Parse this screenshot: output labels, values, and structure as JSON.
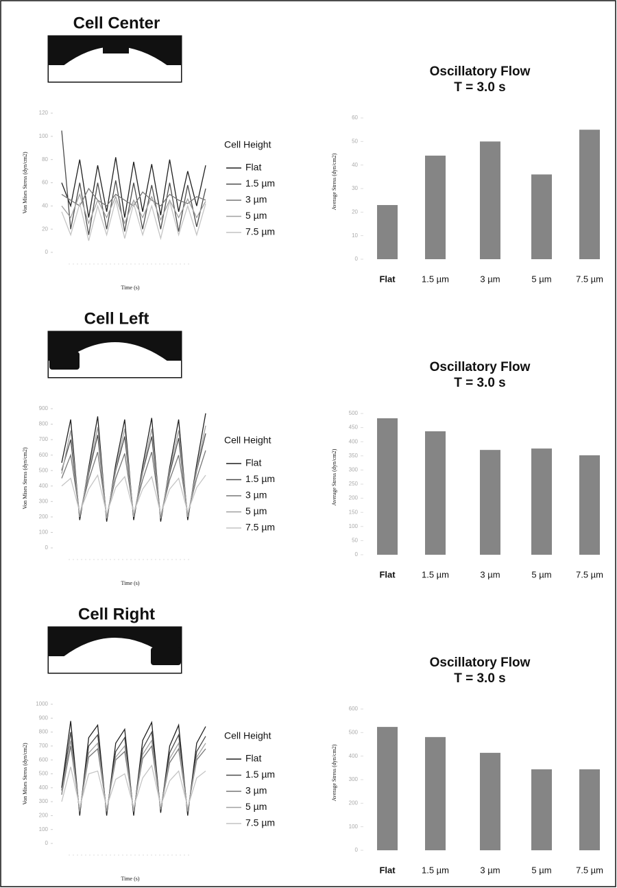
{
  "chart_data": [
    {
      "type": "line",
      "title": "Cell Center",
      "ylabel": "Von Mises Stress (dyn/cm2)",
      "xlabel": "Time (s)",
      "legend_title": "Cell Height",
      "x": [
        0,
        1,
        2,
        3,
        4,
        5,
        6,
        7,
        8,
        9,
        10,
        11,
        12,
        13,
        14,
        15,
        16
      ],
      "xlim": [
        0,
        16
      ],
      "ylim": [
        0,
        120
      ],
      "yticks": [
        0,
        20,
        40,
        60,
        80,
        100,
        120
      ],
      "series": [
        {
          "name": "Flat",
          "color": "#1e1e1e",
          "values": [
            60,
            40,
            80,
            30,
            75,
            35,
            82,
            30,
            78,
            35,
            76,
            32,
            80,
            35,
            70,
            40,
            75
          ]
        },
        {
          "name": "1.5 µm",
          "color": "#4a4a4a",
          "values": [
            105,
            20,
            60,
            15,
            60,
            20,
            62,
            18,
            60,
            20,
            58,
            20,
            60,
            18,
            58,
            22,
            55
          ]
        },
        {
          "name": "3 µm",
          "color": "#777777",
          "values": [
            50,
            45,
            40,
            55,
            45,
            40,
            50,
            45,
            40,
            52,
            45,
            40,
            50,
            45,
            42,
            48,
            45
          ]
        },
        {
          "name": "5 µm",
          "color": "#a0a0a0",
          "values": [
            40,
            30,
            50,
            25,
            45,
            30,
            48,
            25,
            45,
            30,
            48,
            28,
            45,
            30,
            46,
            30,
            44
          ]
        },
        {
          "name": "7.5 µm",
          "color": "#c4c4c4",
          "values": [
            35,
            15,
            42,
            10,
            40,
            15,
            45,
            12,
            42,
            15,
            40,
            12,
            44,
            15,
            40,
            15,
            42
          ]
        }
      ]
    },
    {
      "type": "bar",
      "title": "Oscillatory Flow",
      "subtitle": "T = 3.0 s",
      "ylabel": "Average Stress (dyn/cm2)",
      "color": "#858585",
      "categories": [
        "Flat",
        "1.5 µm",
        "3 µm",
        "5 µm",
        "7.5 µm"
      ],
      "values": [
        23,
        44,
        50,
        36,
        55
      ],
      "ylim": [
        0,
        60
      ],
      "yticks": [
        0,
        10,
        20,
        30,
        40,
        50,
        60
      ]
    },
    {
      "type": "line",
      "title": "Cell Left",
      "ylabel": "Von Mises Stress (dyn/cm2)",
      "xlabel": "Time (s)",
      "legend_title": "Cell Height",
      "x": [
        0,
        1,
        2,
        3,
        4,
        5,
        6,
        7,
        8,
        9,
        10,
        11,
        12,
        13,
        14,
        15,
        16
      ],
      "xlim": [
        0,
        16
      ],
      "ylim": [
        0,
        900
      ],
      "yticks": [
        0,
        100,
        200,
        300,
        400,
        500,
        600,
        700,
        800,
        900
      ],
      "series": [
        {
          "name": "Flat",
          "color": "#1e1e1e",
          "values": [
            550,
            830,
            180,
            520,
            850,
            170,
            540,
            830,
            180,
            530,
            840,
            170,
            520,
            830,
            180,
            540,
            870
          ]
        },
        {
          "name": "1.5 µm",
          "color": "#4a4a4a",
          "values": [
            500,
            700,
            200,
            480,
            730,
            190,
            500,
            720,
            200,
            490,
            720,
            190,
            480,
            710,
            200,
            500,
            740
          ]
        },
        {
          "name": "3 µm",
          "color": "#777777",
          "values": [
            450,
            600,
            220,
            440,
            620,
            210,
            450,
            610,
            220,
            440,
            620,
            210,
            440,
            600,
            220,
            450,
            630
          ]
        },
        {
          "name": "5 µm",
          "color": "#a0a0a0",
          "values": [
            480,
            760,
            200,
            500,
            780,
            190,
            510,
            770,
            200,
            500,
            770,
            190,
            500,
            760,
            200,
            510,
            790
          ]
        },
        {
          "name": "7.5 µm",
          "color": "#c4c4c4",
          "values": [
            400,
            450,
            230,
            380,
            470,
            220,
            390,
            460,
            230,
            380,
            460,
            220,
            380,
            450,
            230,
            390,
            470
          ]
        }
      ]
    },
    {
      "type": "bar",
      "title": "Oscillatory Flow",
      "subtitle": "T = 3.0 s",
      "ylabel": "Average Stress (dyn/cm2)",
      "color": "#858585",
      "categories": [
        "Flat",
        "1.5 µm",
        "3 µm",
        "5 µm",
        "7.5 µm"
      ],
      "values": [
        483,
        437,
        371,
        376,
        352
      ],
      "ylim": [
        0,
        500
      ],
      "yticks": [
        0,
        50,
        100,
        150,
        200,
        250,
        300,
        350,
        400,
        450,
        500
      ]
    },
    {
      "type": "line",
      "title": "Cell Right",
      "ylabel": "Von Mises Stress (dyn/cm2)",
      "xlabel": "Time (s)",
      "legend_title": "Cell Height",
      "x": [
        0,
        1,
        2,
        3,
        4,
        5,
        6,
        7,
        8,
        9,
        10,
        11,
        12,
        13,
        14,
        15,
        16
      ],
      "xlim": [
        0,
        16
      ],
      "ylim": [
        0,
        1000
      ],
      "yticks": [
        0,
        100,
        200,
        300,
        400,
        500,
        600,
        700,
        800,
        900,
        1000
      ],
      "series": [
        {
          "name": "Flat",
          "color": "#1e1e1e",
          "values": [
            400,
            880,
            200,
            760,
            850,
            200,
            720,
            820,
            200,
            740,
            870,
            220,
            700,
            850,
            200,
            720,
            840
          ]
        },
        {
          "name": "1.5 µm",
          "color": "#4a4a4a",
          "values": [
            380,
            800,
            220,
            700,
            780,
            220,
            660,
            760,
            220,
            680,
            800,
            240,
            650,
            780,
            220,
            660,
            770
          ]
        },
        {
          "name": "3 µm",
          "color": "#777777",
          "values": [
            350,
            700,
            240,
            620,
            680,
            240,
            600,
            660,
            240,
            610,
            700,
            250,
            580,
            680,
            240,
            600,
            680
          ]
        },
        {
          "name": "5 µm",
          "color": "#a0a0a0",
          "values": [
            360,
            740,
            230,
            650,
            720,
            230,
            620,
            700,
            230,
            640,
            740,
            245,
            610,
            720,
            230,
            620,
            720
          ]
        },
        {
          "name": "7.5 µm",
          "color": "#c4c4c4",
          "values": [
            300,
            550,
            260,
            500,
            520,
            260,
            460,
            500,
            260,
            470,
            560,
            270,
            450,
            520,
            260,
            470,
            520
          ]
        }
      ]
    },
    {
      "type": "bar",
      "title": "Oscillatory Flow",
      "subtitle": "T = 3.0 s",
      "ylabel": "Average Stress (dyn/cm2)",
      "color": "#858585",
      "categories": [
        "Flat",
        "1.5 µm",
        "3 µm",
        "5 µm",
        "7.5 µm"
      ],
      "values": [
        524,
        481,
        414,
        344,
        344
      ],
      "ylim": [
        0,
        600
      ],
      "yticks": [
        0,
        100,
        200,
        300,
        400,
        500,
        600
      ]
    }
  ]
}
